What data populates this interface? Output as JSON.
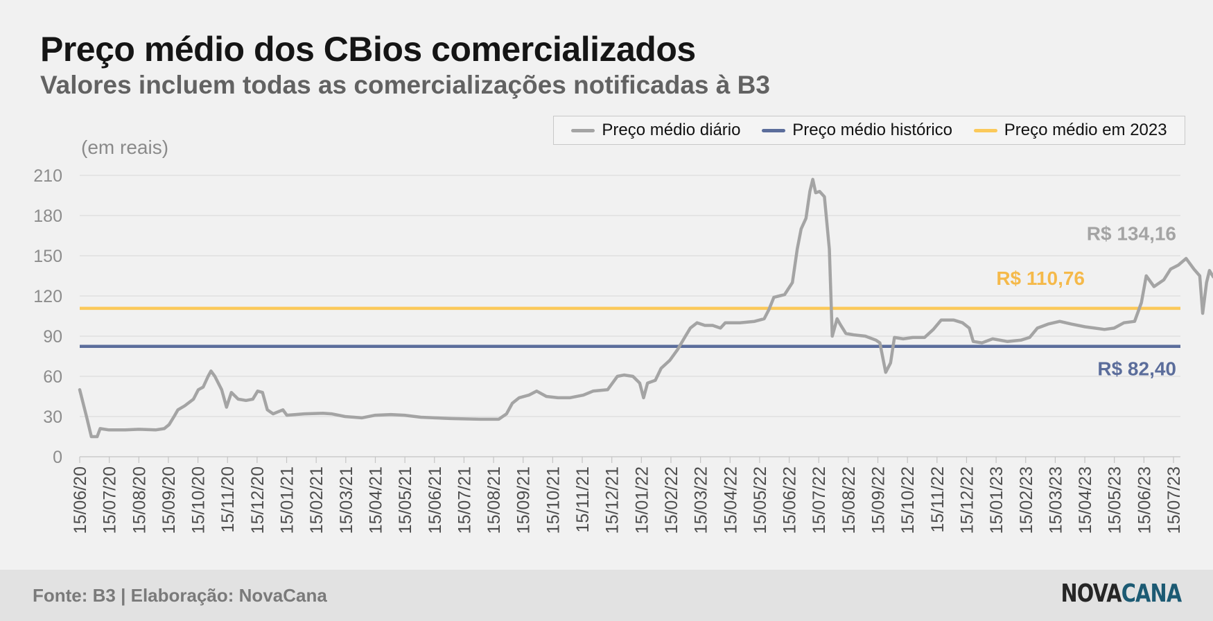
{
  "header": {
    "title": "Preço médio dos CBios comercializados",
    "subtitle": "Valores incluem todas as comercializações notificadas à B3"
  },
  "legend": [
    {
      "label": "Preço médio diário",
      "color": "#a4a4a4"
    },
    {
      "label": "Preço médio histórico",
      "color": "#5b6d9b"
    },
    {
      "label": "Preço médio em 2023",
      "color": "#fbc95a"
    }
  ],
  "footer": {
    "source": "Fonte: B3 | Elaboração: NovaCana",
    "logo_part1": "NOVA",
    "logo_part2": "CANA"
  },
  "chart_data": {
    "type": "line",
    "unit_label": "(em reais)",
    "ylim": [
      0,
      210
    ],
    "yticks": [
      0,
      30,
      60,
      90,
      120,
      150,
      180,
      210
    ],
    "xticks": [
      "15/06/20",
      "15/07/20",
      "15/08/20",
      "15/09/20",
      "15/10/20",
      "15/11/20",
      "15/12/20",
      "15/01/21",
      "15/02/21",
      "15/03/21",
      "15/04/21",
      "15/05/21",
      "15/06/21",
      "15/07/21",
      "15/08/21",
      "15/09/21",
      "15/10/21",
      "15/11/21",
      "15/12/21",
      "15/01/22",
      "15/02/22",
      "15/03/22",
      "15/04/22",
      "15/05/22",
      "15/06/22",
      "15/07/22",
      "15/08/22",
      "15/09/22",
      "15/10/22",
      "15/11/22",
      "15/12/22",
      "15/01/23",
      "15/02/23",
      "15/03/23",
      "15/04/23",
      "15/05/23",
      "15/06/23",
      "15/07/23"
    ],
    "grid": true,
    "series": [
      {
        "name": "Preço médio diário",
        "color": "#a4a4a4",
        "points": [
          [
            "2020-06-15",
            50
          ],
          [
            "2020-06-22",
            30
          ],
          [
            "2020-06-27",
            15
          ],
          [
            "2020-07-03",
            15
          ],
          [
            "2020-07-06",
            21
          ],
          [
            "2020-07-15",
            20
          ],
          [
            "2020-08-01",
            20
          ],
          [
            "2020-08-15",
            20.5
          ],
          [
            "2020-09-01",
            20
          ],
          [
            "2020-09-10",
            21
          ],
          [
            "2020-09-15",
            24
          ],
          [
            "2020-09-20",
            30
          ],
          [
            "2020-09-24",
            35
          ],
          [
            "2020-10-01",
            38
          ],
          [
            "2020-10-10",
            43
          ],
          [
            "2020-10-15",
            50
          ],
          [
            "2020-10-20",
            52
          ],
          [
            "2020-10-25",
            60
          ],
          [
            "2020-10-28",
            64
          ],
          [
            "2020-11-01",
            60
          ],
          [
            "2020-11-08",
            50
          ],
          [
            "2020-11-13",
            37
          ],
          [
            "2020-11-18",
            48
          ],
          [
            "2020-11-25",
            43
          ],
          [
            "2020-12-03",
            42
          ],
          [
            "2020-12-10",
            43
          ],
          [
            "2020-12-15",
            49
          ],
          [
            "2020-12-20",
            48
          ],
          [
            "2020-12-25",
            35
          ],
          [
            "2020-12-31",
            32
          ],
          [
            "2021-01-10",
            35
          ],
          [
            "2021-01-14",
            31
          ],
          [
            "2021-02-01",
            32
          ],
          [
            "2021-02-20",
            32.5
          ],
          [
            "2021-03-01",
            32
          ],
          [
            "2021-03-15",
            30
          ],
          [
            "2021-04-01",
            29
          ],
          [
            "2021-04-15",
            31
          ],
          [
            "2021-05-01",
            31.5
          ],
          [
            "2021-05-15",
            31
          ],
          [
            "2021-06-01",
            29.5
          ],
          [
            "2021-06-15",
            29
          ],
          [
            "2021-07-01",
            28.5
          ],
          [
            "2021-08-01",
            28
          ],
          [
            "2021-08-20",
            28
          ],
          [
            "2021-08-28",
            32
          ],
          [
            "2021-09-03",
            40
          ],
          [
            "2021-09-10",
            44
          ],
          [
            "2021-09-20",
            46
          ],
          [
            "2021-09-28",
            49
          ],
          [
            "2021-10-08",
            45
          ],
          [
            "2021-10-20",
            44
          ],
          [
            "2021-11-01",
            44
          ],
          [
            "2021-11-15",
            46
          ],
          [
            "2021-11-25",
            49
          ],
          [
            "2021-12-10",
            50
          ],
          [
            "2021-12-20",
            60
          ],
          [
            "2021-12-27",
            61
          ],
          [
            "2022-01-05",
            60
          ],
          [
            "2022-01-12",
            55
          ],
          [
            "2022-01-16",
            44
          ],
          [
            "2022-01-20",
            55
          ],
          [
            "2022-01-28",
            57
          ],
          [
            "2022-02-03",
            66
          ],
          [
            "2022-02-12",
            72
          ],
          [
            "2022-02-20",
            80
          ],
          [
            "2022-02-28",
            90
          ],
          [
            "2022-03-05",
            96
          ],
          [
            "2022-03-12",
            100
          ],
          [
            "2022-03-20",
            98
          ],
          [
            "2022-03-28",
            98
          ],
          [
            "2022-04-05",
            96
          ],
          [
            "2022-04-10",
            100
          ],
          [
            "2022-04-25",
            100
          ],
          [
            "2022-05-10",
            101
          ],
          [
            "2022-05-20",
            103
          ],
          [
            "2022-05-25",
            110
          ],
          [
            "2022-05-30",
            119
          ],
          [
            "2022-06-10",
            121
          ],
          [
            "2022-06-18",
            130
          ],
          [
            "2022-06-23",
            155
          ],
          [
            "2022-06-27",
            170
          ],
          [
            "2022-07-02",
            178
          ],
          [
            "2022-07-06",
            198
          ],
          [
            "2022-07-09",
            207
          ],
          [
            "2022-07-12",
            197
          ],
          [
            "2022-07-16",
            198
          ],
          [
            "2022-07-21",
            194
          ],
          [
            "2022-07-26",
            155
          ],
          [
            "2022-07-29",
            90
          ],
          [
            "2022-08-03",
            103
          ],
          [
            "2022-08-06",
            99
          ],
          [
            "2022-08-12",
            92
          ],
          [
            "2022-08-20",
            91
          ],
          [
            "2022-09-01",
            90
          ],
          [
            "2022-09-12",
            87
          ],
          [
            "2022-09-16",
            85
          ],
          [
            "2022-09-22",
            63
          ],
          [
            "2022-09-27",
            70
          ],
          [
            "2022-10-01",
            89
          ],
          [
            "2022-10-10",
            88
          ],
          [
            "2022-10-20",
            89
          ],
          [
            "2022-11-01",
            89
          ],
          [
            "2022-11-10",
            95
          ],
          [
            "2022-11-18",
            102
          ],
          [
            "2022-12-01",
            102
          ],
          [
            "2022-12-10",
            100
          ],
          [
            "2022-12-17",
            96
          ],
          [
            "2022-12-21",
            86
          ],
          [
            "2022-12-30",
            85
          ],
          [
            "2023-01-10",
            88
          ],
          [
            "2023-01-25",
            86
          ],
          [
            "2023-02-08",
            87
          ],
          [
            "2023-02-17",
            89
          ],
          [
            "2023-02-25",
            96
          ],
          [
            "2023-03-08",
            99
          ],
          [
            "2023-03-20",
            101
          ],
          [
            "2023-04-01",
            99
          ],
          [
            "2023-04-15",
            97
          ],
          [
            "2023-04-25",
            96
          ],
          [
            "2023-05-05",
            95
          ],
          [
            "2023-05-15",
            96
          ],
          [
            "2023-05-25",
            100
          ],
          [
            "2023-06-05",
            101
          ],
          [
            "2023-06-12",
            115
          ],
          [
            "2023-06-17",
            135
          ],
          [
            "2023-06-25",
            127
          ],
          [
            "2023-07-05",
            132
          ],
          [
            "2023-07-12",
            140
          ],
          [
            "2023-07-20",
            143
          ],
          [
            "2023-07-28",
            148
          ],
          [
            "2023-08-05",
            140
          ],
          [
            "2023-08-11",
            135
          ],
          [
            "2023-08-14",
            107
          ],
          [
            "2023-08-18",
            130
          ],
          [
            "2023-08-21",
            139
          ],
          [
            "2023-08-25",
            134.16
          ]
        ]
      },
      {
        "name": "Preço médio histórico",
        "color": "#5b6d9b",
        "constant": 82.4
      },
      {
        "name": "Preço médio em 2023",
        "color": "#fbc95a",
        "constant": 110.76
      }
    ],
    "annotations": [
      {
        "text": "R$ 134,16",
        "value": 134.16,
        "color": "#a4a4a4"
      },
      {
        "text": "R$ 110,76",
        "value": 110.76,
        "color": "#f5b94a"
      },
      {
        "text": "R$ 82,40",
        "value": 82.4,
        "color": "#5b6d9b"
      }
    ]
  }
}
